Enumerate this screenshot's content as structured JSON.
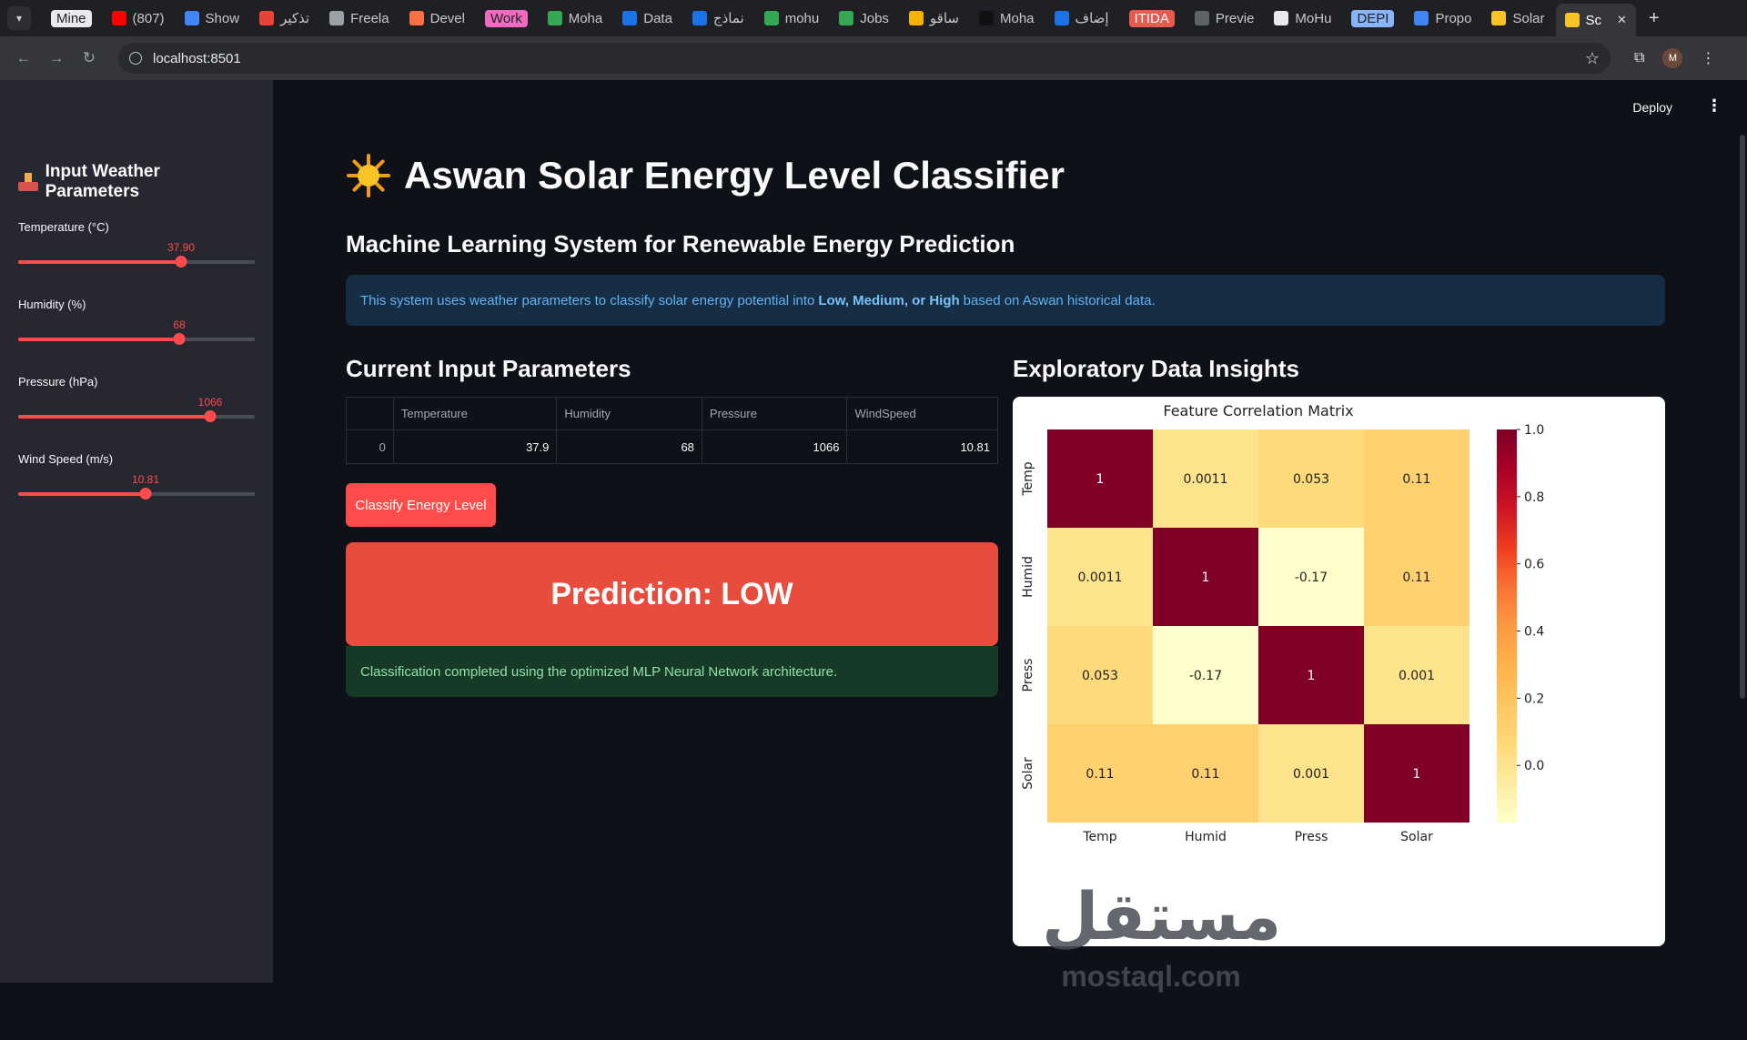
{
  "browser": {
    "tabs": [
      {
        "label": "Mine",
        "chip": "#e8eaed",
        "chip_text": "#202124"
      },
      {
        "label": "(807)",
        "fav": "#ff0000"
      },
      {
        "label": "Show",
        "fav": "#4285f4"
      },
      {
        "label": "تذكير",
        "fav": "#ea4335"
      },
      {
        "label": "Freela",
        "fav": "#9aa0a6"
      },
      {
        "label": "Devel",
        "fav": "#ff7043"
      },
      {
        "label": "Work",
        "chip": "#f06bbd",
        "chip_text": "#202124"
      },
      {
        "label": "Moha",
        "fav": "#34a853"
      },
      {
        "label": "Data",
        "fav": "#1a73e8"
      },
      {
        "label": "نماذج",
        "fav": "#1a73e8"
      },
      {
        "label": "mohu",
        "fav": "#34a853"
      },
      {
        "label": "Jobs",
        "fav": "#34a853"
      },
      {
        "label": "ساقو",
        "fav": "#f4b400"
      },
      {
        "label": "Moha",
        "fav": "#111111"
      },
      {
        "label": "إضاف",
        "fav": "#1a73e8"
      },
      {
        "label": "ITIDA",
        "chip": "#e8594f",
        "chip_text": "#ffffff"
      },
      {
        "label": "Previe",
        "fav": "#5f6368"
      },
      {
        "label": "MoHu",
        "fav": "#e8eaed"
      },
      {
        "label": "DEPI",
        "chip": "#8ab4f8",
        "chip_text": "#202124"
      },
      {
        "label": "Propo",
        "fav": "#4285f4"
      },
      {
        "label": "Solar",
        "fav": "#f7c325"
      },
      {
        "label": "Sc",
        "fav": "#f7c325",
        "active": true
      }
    ],
    "url": "localhost:8501"
  },
  "header": {
    "deploy_label": "Deploy",
    "menu_icon": "kebab-icon"
  },
  "sidebar": {
    "title": "Input Weather Parameters",
    "title_icon": "inbox-tray-icon",
    "sliders": [
      {
        "label": "Temperature (°C)",
        "value_text": "37.90",
        "fraction": 0.69
      },
      {
        "label": "Humidity (%)",
        "value_text": "68",
        "fraction": 0.68
      },
      {
        "label": "Pressure (hPa)",
        "value_text": "1066",
        "fraction": 0.81
      },
      {
        "label": "Wind Speed (m/s)",
        "value_text": "10.81",
        "fraction": 0.54
      }
    ]
  },
  "main": {
    "title": "Aswan Solar Energy Level Classifier",
    "title_icon": "sun-icon",
    "subtitle": "Machine Learning System for Renewable Energy Prediction",
    "info": {
      "before": "This system uses weather parameters to classify solar energy potential into",
      "bold": "Low, Medium, or High",
      "after": "based on Aswan historical data."
    },
    "inputs_heading": "Current Input Parameters",
    "table": {
      "columns": [
        "",
        "Temperature",
        "Humidity",
        "Pressure",
        "WindSpeed"
      ],
      "rows": [
        [
          "0",
          "37.9",
          "68",
          "1066",
          "10.81"
        ]
      ]
    },
    "classify_label": "Classify Energy Level",
    "prediction": "Prediction: LOW",
    "prediction_color": "#e74c3c",
    "success_text": "Classification completed using the optimized MLP Neural Network architecture.",
    "insights_heading": "Exploratory Data Insights"
  },
  "chart_data": {
    "type": "heatmap",
    "title": "Feature Correlation Matrix",
    "x": [
      "Temp",
      "Humid",
      "Press",
      "Solar"
    ],
    "y": [
      "Temp",
      "Humid",
      "Press",
      "Solar"
    ],
    "values": [
      [
        1,
        0.0011,
        0.053,
        0.11
      ],
      [
        0.0011,
        1,
        -0.17,
        0.11
      ],
      [
        0.053,
        -0.17,
        1,
        0.001
      ],
      [
        0.11,
        0.11,
        0.001,
        1
      ]
    ],
    "value_labels": [
      [
        "1",
        "0.0011",
        "0.053",
        "0.11"
      ],
      [
        "0.0011",
        "1",
        "-0.17",
        "0.11"
      ],
      [
        "0.053",
        "-0.17",
        "1",
        "0.001"
      ],
      [
        "0.11",
        "0.11",
        "0.001",
        "1"
      ]
    ],
    "colorscale": "YlOrRd",
    "vmin": -0.17,
    "vmax": 1.0,
    "colorbar_ticks": [
      "1.0",
      "0.8",
      "0.6",
      "0.4",
      "0.2",
      "0.0"
    ],
    "colorbar_tick_values": [
      1.0,
      0.8,
      0.6,
      0.4,
      0.2,
      0.0
    ]
  },
  "watermark": {
    "arabic": "مستقل",
    "latin": "mostaql.com"
  }
}
